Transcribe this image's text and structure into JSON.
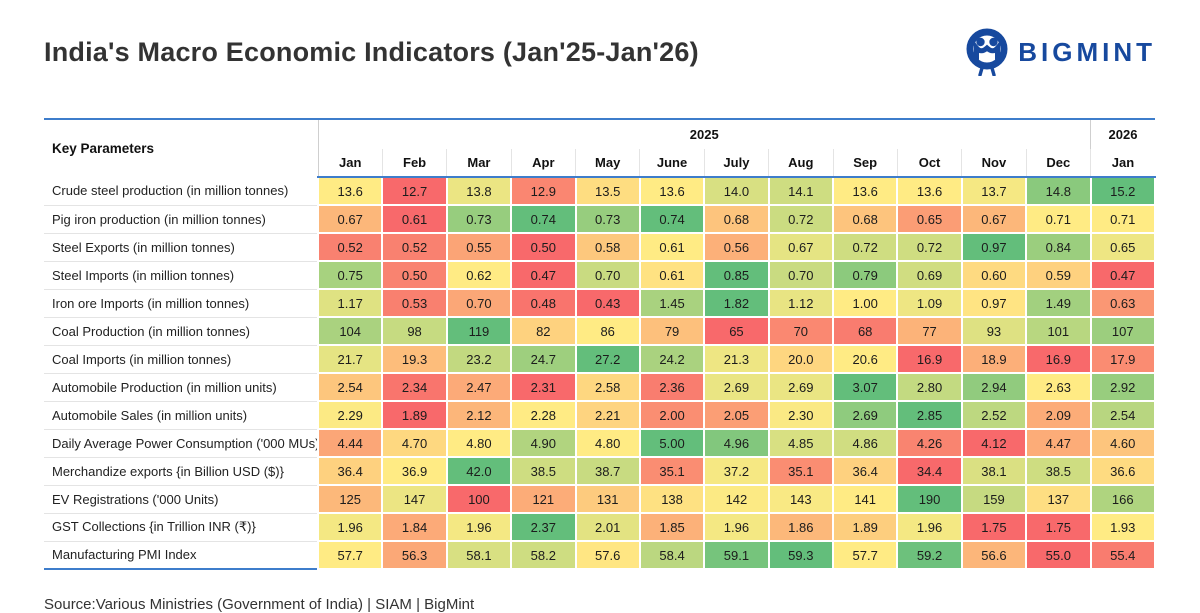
{
  "logo": {
    "text": "BIGMINT",
    "color": "#17499e"
  },
  "chart_data": {
    "type": "heatmap",
    "title": "India's Macro Economic Indicators (Jan'25-Jan'26)",
    "key_col_header": "Key Parameters",
    "column_groups": [
      {
        "label": "2025",
        "span": 12
      },
      {
        "label": "2026",
        "span": 1
      }
    ],
    "columns": [
      "Jan",
      "Feb",
      "Mar",
      "Apr",
      "May",
      "June",
      "July",
      "Aug",
      "Sep",
      "Oct",
      "Nov",
      "Dec",
      "Jan"
    ],
    "color_scale": {
      "low": "#F8696B",
      "mid": "#FFEB84",
      "high": "#63BE7B",
      "midpoint": "per-row median"
    },
    "rows": [
      {
        "label": "Crude steel production (in million tonnes)",
        "values": [
          "13.6",
          "12.7",
          "13.8",
          "12.9",
          "13.5",
          "13.6",
          "14.0",
          "14.1",
          "13.6",
          "13.6",
          "13.7",
          "14.8",
          "15.2"
        ]
      },
      {
        "label": "Pig iron production (in million tonnes)",
        "values": [
          "0.67",
          "0.61",
          "0.73",
          "0.74",
          "0.73",
          "0.74",
          "0.68",
          "0.72",
          "0.68",
          "0.65",
          "0.67",
          "0.71",
          "0.71"
        ]
      },
      {
        "label": "Steel Exports (in million tonnes)",
        "values": [
          "0.52",
          "0.52",
          "0.55",
          "0.50",
          "0.58",
          "0.61",
          "0.56",
          "0.67",
          "0.72",
          "0.72",
          "0.97",
          "0.84",
          "0.65"
        ]
      },
      {
        "label": "Steel Imports (in million tonnes)",
        "values": [
          "0.75",
          "0.50",
          "0.62",
          "0.47",
          "0.70",
          "0.61",
          "0.85",
          "0.70",
          "0.79",
          "0.69",
          "0.60",
          "0.59",
          "0.47"
        ]
      },
      {
        "label": "Iron ore Imports (in million tonnes)",
        "values": [
          "1.17",
          "0.53",
          "0.70",
          "0.48",
          "0.43",
          "1.45",
          "1.82",
          "1.12",
          "1.00",
          "1.09",
          "0.97",
          "1.49",
          "0.63"
        ]
      },
      {
        "label": "Coal Production (in million tonnes)",
        "values": [
          "104",
          "98",
          "119",
          "82",
          "86",
          "79",
          "65",
          "70",
          "68",
          "77",
          "93",
          "101",
          "107"
        ]
      },
      {
        "label": "Coal Imports (in million tonnes)",
        "values": [
          "21.7",
          "19.3",
          "23.2",
          "24.7",
          "27.2",
          "24.2",
          "21.3",
          "20.0",
          "20.6",
          "16.9",
          "18.9",
          "16.9",
          "17.9"
        ]
      },
      {
        "label": "Automobile Production (in million units)",
        "values": [
          "2.54",
          "2.34",
          "2.47",
          "2.31",
          "2.58",
          "2.36",
          "2.69",
          "2.69",
          "3.07",
          "2.80",
          "2.94",
          "2.63",
          "2.92"
        ]
      },
      {
        "label": "Automobile Sales (in million units)",
        "values": [
          "2.29",
          "1.89",
          "2.12",
          "2.28",
          "2.21",
          "2.00",
          "2.05",
          "2.30",
          "2.69",
          "2.85",
          "2.52",
          "2.09",
          "2.54"
        ]
      },
      {
        "label": "Daily Average Power Consumption ('000 MUs)",
        "values": [
          "4.44",
          "4.70",
          "4.80",
          "4.90",
          "4.80",
          "5.00",
          "4.96",
          "4.85",
          "4.86",
          "4.26",
          "4.12",
          "4.47",
          "4.60"
        ]
      },
      {
        "label": "Merchandize exports {in Billion USD ($)}",
        "values": [
          "36.4",
          "36.9",
          "42.0",
          "38.5",
          "38.7",
          "35.1",
          "37.2",
          "35.1",
          "36.4",
          "34.4",
          "38.1",
          "38.5",
          "36.6"
        ]
      },
      {
        "label": "EV Registrations ('000 Units)",
        "values": [
          "125",
          "147",
          "100",
          "121",
          "131",
          "138",
          "142",
          "143",
          "141",
          "190",
          "159",
          "137",
          "166"
        ]
      },
      {
        "label": "GST Collections {in Trillion INR (₹)}",
        "values": [
          "1.96",
          "1.84",
          "1.96",
          "2.37",
          "2.01",
          "1.85",
          "1.96",
          "1.86",
          "1.89",
          "1.96",
          "1.75",
          "1.75",
          "1.93"
        ]
      },
      {
        "label": "Manufacturing PMI Index",
        "values": [
          "57.7",
          "56.3",
          "58.1",
          "58.2",
          "57.6",
          "58.4",
          "59.1",
          "59.3",
          "57.7",
          "59.2",
          "56.6",
          "55.0",
          "55.4"
        ]
      }
    ],
    "source_note": "Source:Various Ministries (Government of India) | SIAM | BigMint"
  }
}
